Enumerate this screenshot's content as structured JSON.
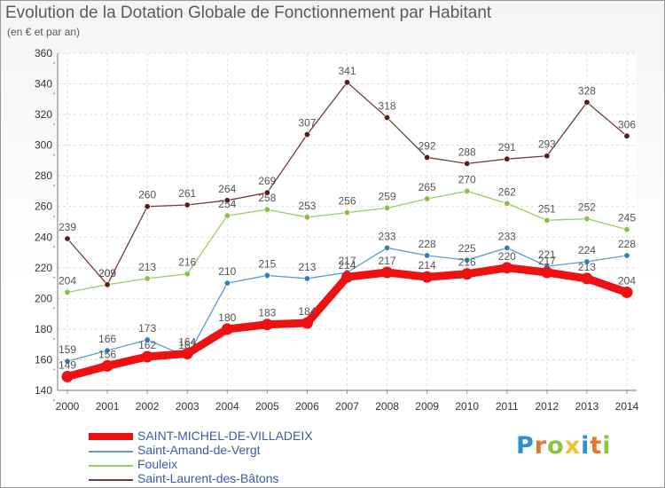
{
  "title": "Evolution de la Dotation Globale de Fonctionnement par Habitant",
  "subtitle": "(en € et par an)",
  "logo": {
    "text": "Proxiti",
    "letters": [
      {
        "ch": "P",
        "color": "#2e8fd0"
      },
      {
        "ch": "r",
        "color": "#e8762c"
      },
      {
        "ch": "o",
        "color": "#8bc43f"
      },
      {
        "ch": "x",
        "color": "#f1c232"
      },
      {
        "ch": "i",
        "color": "#2e8fd0"
      },
      {
        "ch": "t",
        "color": "#e8762c"
      },
      {
        "ch": "i",
        "color": "#8bc43f"
      }
    ]
  },
  "chart_data": {
    "type": "line",
    "title": "Evolution de la Dotation Globale de Fonctionnement par Habitant",
    "subtitle": "(en € et par an)",
    "xlabel": "",
    "ylabel": "",
    "ylim": [
      140,
      360
    ],
    "yticks": [
      140,
      160,
      180,
      200,
      220,
      240,
      260,
      280,
      300,
      320,
      340,
      360
    ],
    "grid": true,
    "legend_position": "bottom-left",
    "categories": [
      "2000",
      "2001",
      "2002",
      "2003",
      "2004",
      "2005",
      "2006",
      "2007",
      "2008",
      "2009",
      "2010",
      "2011",
      "2012",
      "2013",
      "2014"
    ],
    "series": [
      {
        "name": "SAINT-MICHEL-DE-VILLADEIX",
        "color": "#ee1111",
        "emphasis": true,
        "values": [
          149,
          156,
          162,
          164,
          180,
          183,
          184,
          214,
          217,
          214,
          216,
          220,
          217,
          213,
          204
        ]
      },
      {
        "name": "Saint-Amand-de-Vergt",
        "color": "#5b9bd5",
        "marker": "#2e7fc0",
        "emphasis": false,
        "values": [
          159,
          166,
          173,
          162,
          210,
          215,
          213,
          217,
          233,
          228,
          225,
          233,
          221,
          224,
          228
        ]
      },
      {
        "name": "Fouleix",
        "color": "#9acd63",
        "marker": "#86c23f",
        "emphasis": false,
        "values": [
          204,
          209,
          213,
          216,
          254,
          258,
          253,
          256,
          259,
          265,
          270,
          262,
          251,
          252,
          245
        ]
      },
      {
        "name": "Saint-Laurent-des-Bâtons",
        "color": "#7a3838",
        "marker": "#5c1b1b",
        "emphasis": false,
        "values": [
          239,
          209,
          260,
          261,
          264,
          269,
          307,
          341,
          318,
          292,
          288,
          291,
          293,
          328,
          306
        ]
      }
    ]
  }
}
